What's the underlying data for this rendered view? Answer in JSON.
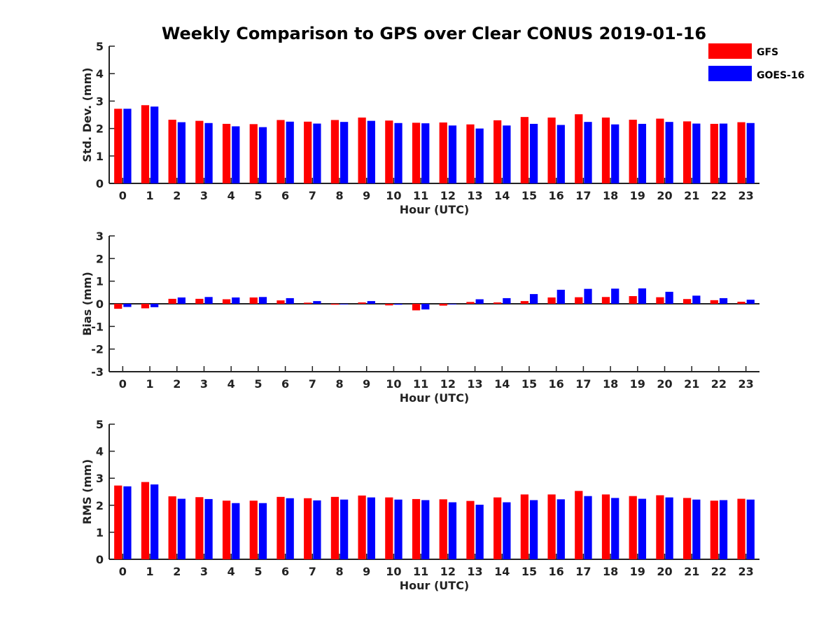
{
  "colors": {
    "gfs": "#ff0000",
    "goes": "#0000ff",
    "axis": "#222222"
  },
  "chart_data": {
    "type": "bar",
    "title": "Weekly Comparison to GPS over Clear CONUS 2019-01-16",
    "legend": {
      "placement": "top-right",
      "entries": [
        "GFS",
        "GOES-16"
      ]
    },
    "categories": [
      "0",
      "1",
      "2",
      "3",
      "4",
      "5",
      "6",
      "7",
      "8",
      "9",
      "10",
      "11",
      "12",
      "13",
      "14",
      "15",
      "16",
      "17",
      "18",
      "19",
      "20",
      "21",
      "22",
      "23"
    ],
    "panels": [
      {
        "id": "std",
        "ylabel": "Std. Dev. (mm)",
        "xlabel": "Hour (UTC)",
        "ylim": [
          0,
          5
        ],
        "yticks": [
          "0",
          "1",
          "2",
          "3",
          "4",
          "5"
        ],
        "series": [
          {
            "name": "GFS",
            "values": [
              2.72,
              2.85,
              2.32,
              2.28,
              2.17,
              2.16,
              2.31,
              2.25,
              2.31,
              2.4,
              2.29,
              2.21,
              2.22,
              2.15,
              2.3,
              2.42,
              2.4,
              2.52,
              2.4,
              2.32,
              2.36,
              2.26,
              2.17,
              2.23
            ]
          },
          {
            "name": "GOES-16",
            "values": [
              2.72,
              2.8,
              2.23,
              2.2,
              2.08,
              2.05,
              2.25,
              2.18,
              2.24,
              2.28,
              2.2,
              2.19,
              2.11,
              2.0,
              2.11,
              2.17,
              2.13,
              2.24,
              2.15,
              2.17,
              2.24,
              2.18,
              2.18,
              2.2
            ]
          }
        ]
      },
      {
        "id": "bias",
        "ylabel": "Bias (mm)",
        "xlabel": "Hour (UTC)",
        "ylim": [
          -3,
          3
        ],
        "yticks": [
          "-3",
          "-2",
          "-1",
          "0",
          "1",
          "2",
          "3"
        ],
        "series": [
          {
            "name": "GFS",
            "values": [
              -0.22,
              -0.2,
              0.22,
              0.22,
              0.2,
              0.28,
              0.15,
              0.05,
              -0.04,
              0.06,
              -0.07,
              -0.29,
              -0.08,
              0.08,
              0.06,
              0.12,
              0.28,
              0.29,
              0.3,
              0.34,
              0.29,
              0.21,
              0.16,
              0.09
            ]
          },
          {
            "name": "GOES-16",
            "values": [
              -0.14,
              -0.15,
              0.28,
              0.3,
              0.28,
              0.3,
              0.25,
              0.12,
              -0.02,
              0.12,
              -0.04,
              -0.25,
              -0.02,
              0.2,
              0.25,
              0.43,
              0.62,
              0.66,
              0.67,
              0.68,
              0.53,
              0.36,
              0.25,
              0.18
            ]
          }
        ]
      },
      {
        "id": "rms",
        "ylabel": "RMS (mm)",
        "xlabel": "Hour (UTC)",
        "ylim": [
          0,
          5
        ],
        "yticks": [
          "0",
          "1",
          "2",
          "3",
          "4",
          "5"
        ],
        "series": [
          {
            "name": "GFS",
            "values": [
              2.73,
              2.86,
              2.33,
              2.3,
              2.17,
              2.17,
              2.31,
              2.26,
              2.31,
              2.36,
              2.29,
              2.23,
              2.22,
              2.16,
              2.29,
              2.4,
              2.4,
              2.53,
              2.4,
              2.34,
              2.37,
              2.27,
              2.17,
              2.24
            ]
          },
          {
            "name": "GOES-16",
            "values": [
              2.7,
              2.77,
              2.24,
              2.23,
              2.08,
              2.08,
              2.26,
              2.18,
              2.21,
              2.29,
              2.21,
              2.19,
              2.11,
              2.02,
              2.11,
              2.19,
              2.22,
              2.34,
              2.27,
              2.24,
              2.29,
              2.21,
              2.19,
              2.21
            ]
          }
        ]
      }
    ]
  }
}
